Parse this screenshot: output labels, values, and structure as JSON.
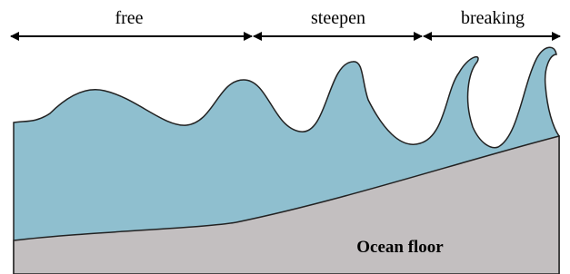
{
  "labels": {
    "free": "free",
    "steepen": "steepen",
    "breaking": "breaking"
  },
  "floor_label": "Ocean floor"
}
